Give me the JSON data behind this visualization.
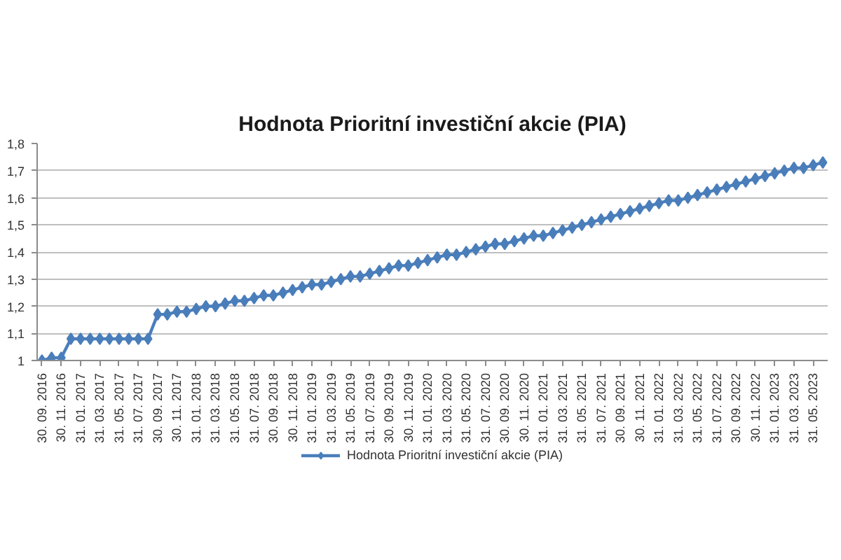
{
  "chart_data": {
    "type": "line",
    "title": "Hodnota Prioritní investiční akcie (PIA)",
    "categories": [
      "30. 09. 2016",
      null,
      "30. 11. 2016",
      null,
      "31. 01. 2017",
      null,
      "31. 03. 2017",
      null,
      "31. 05. 2017",
      null,
      "31. 07. 2017",
      null,
      "30. 09. 2017",
      null,
      "30. 11. 2017",
      null,
      "31. 01. 2018",
      null,
      "31. 03. 2018",
      null,
      "31. 05. 2018",
      null,
      "31. 07. 2018",
      null,
      "30. 09. 2018",
      null,
      "30. 11. 2018",
      null,
      "31. 01. 2019",
      null,
      "31. 03. 2019",
      null,
      "31. 05. 2019",
      null,
      "31. 07. 2019",
      null,
      "30. 09. 2019",
      null,
      "30. 11. 2019",
      null,
      "31. 01. 2020",
      null,
      "31. 03. 2020",
      null,
      "31. 05. 2020",
      null,
      "31. 07. 2020",
      null,
      "30. 09. 2020",
      null,
      "30. 11. 2020",
      null,
      "31. 01. 2021",
      null,
      "31. 03. 2021",
      null,
      "31. 05. 2021",
      null,
      "31. 07. 2021",
      null,
      "30. 09. 2021",
      null,
      "30. 11. 2021",
      null,
      "31. 01. 2022",
      null,
      "31. 03. 2022",
      null,
      "31. 05. 2022",
      null,
      "31. 07. 2022",
      null,
      "30. 09. 2022",
      null,
      "30. 11. 2022",
      null,
      "31. 01. 2023",
      null,
      "31. 03. 2023",
      null,
      "31. 05. 2023",
      null
    ],
    "series": [
      {
        "name": "Hodnota Prioritní investiční akcie (PIA)",
        "color": "#4a7ebb",
        "values": [
          1.0,
          1.01,
          1.01,
          1.08,
          1.08,
          1.08,
          1.08,
          1.08,
          1.08,
          1.08,
          1.08,
          1.08,
          1.17,
          1.17,
          1.18,
          1.18,
          1.19,
          1.2,
          1.2,
          1.21,
          1.22,
          1.22,
          1.23,
          1.24,
          1.24,
          1.25,
          1.26,
          1.27,
          1.28,
          1.28,
          1.29,
          1.3,
          1.31,
          1.31,
          1.32,
          1.33,
          1.34,
          1.35,
          1.35,
          1.36,
          1.37,
          1.38,
          1.39,
          1.39,
          1.4,
          1.41,
          1.42,
          1.43,
          1.43,
          1.44,
          1.45,
          1.46,
          1.46,
          1.47,
          1.48,
          1.49,
          1.5,
          1.51,
          1.52,
          1.53,
          1.54,
          1.55,
          1.56,
          1.57,
          1.58,
          1.59,
          1.59,
          1.6,
          1.61,
          1.62,
          1.63,
          1.64,
          1.65,
          1.66,
          1.67,
          1.68,
          1.69,
          1.7,
          1.71,
          1.71,
          1.72,
          1.73
        ]
      }
    ],
    "ylim": [
      1,
      1.8
    ],
    "yticks": [
      1,
      {
        "value": 1.1,
        "label": "1,1"
      },
      {
        "value": 1.2,
        "label": "1,2"
      },
      {
        "value": 1.3,
        "label": "1,3"
      },
      {
        "value": 1.4,
        "label": "1,4"
      },
      {
        "value": 1.5,
        "label": "1,5"
      },
      {
        "value": 1.6,
        "label": "1,6"
      },
      {
        "value": 1.7,
        "label": "1,7"
      },
      {
        "value": 1.8,
        "label": "1,8"
      }
    ],
    "grid": "y",
    "legend": "bottom",
    "marker": "diamond",
    "line_style": "solid"
  }
}
